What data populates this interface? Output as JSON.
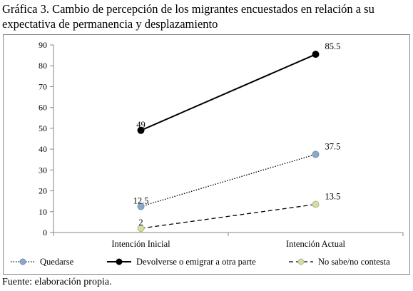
{
  "title": "Gráfica 3. Cambio de percepción de los migrantes encuestados en relación a su expectativa de permanencia y desplazamiento",
  "source": "Fuente: elaboración propia.",
  "chart_data": {
    "type": "line",
    "categories": [
      "Intención Inicial",
      "Intención Actual"
    ],
    "yticks": [
      "0",
      "10",
      "20",
      "30",
      "40",
      "50",
      "60",
      "70",
      "80",
      "90"
    ],
    "ylim": [
      0,
      90
    ],
    "grid": false,
    "legend_position": "bottom",
    "series": [
      {
        "name": "Quedarse",
        "values": [
          12.5,
          37.5
        ],
        "labels": [
          "12.5",
          "37.5"
        ],
        "line_style": "dotted",
        "line_color": "#000000",
        "marker_fill": "#8ea9c8",
        "marker_stroke": "#6f8fb5"
      },
      {
        "name": "Devolverse o emigrar a otra parte",
        "values": [
          49,
          85.5
        ],
        "labels": [
          "49",
          "85.5"
        ],
        "line_style": "solid",
        "line_color": "#000000",
        "marker_fill": "#000000",
        "marker_stroke": "#000000"
      },
      {
        "name": "No sabe/no contesta",
        "values": [
          2,
          13.5
        ],
        "labels": [
          "2",
          "13.5"
        ],
        "line_style": "dashed",
        "line_color": "#000000",
        "marker_fill": "#d6dbab",
        "marker_stroke": "#b4bc84"
      }
    ]
  }
}
